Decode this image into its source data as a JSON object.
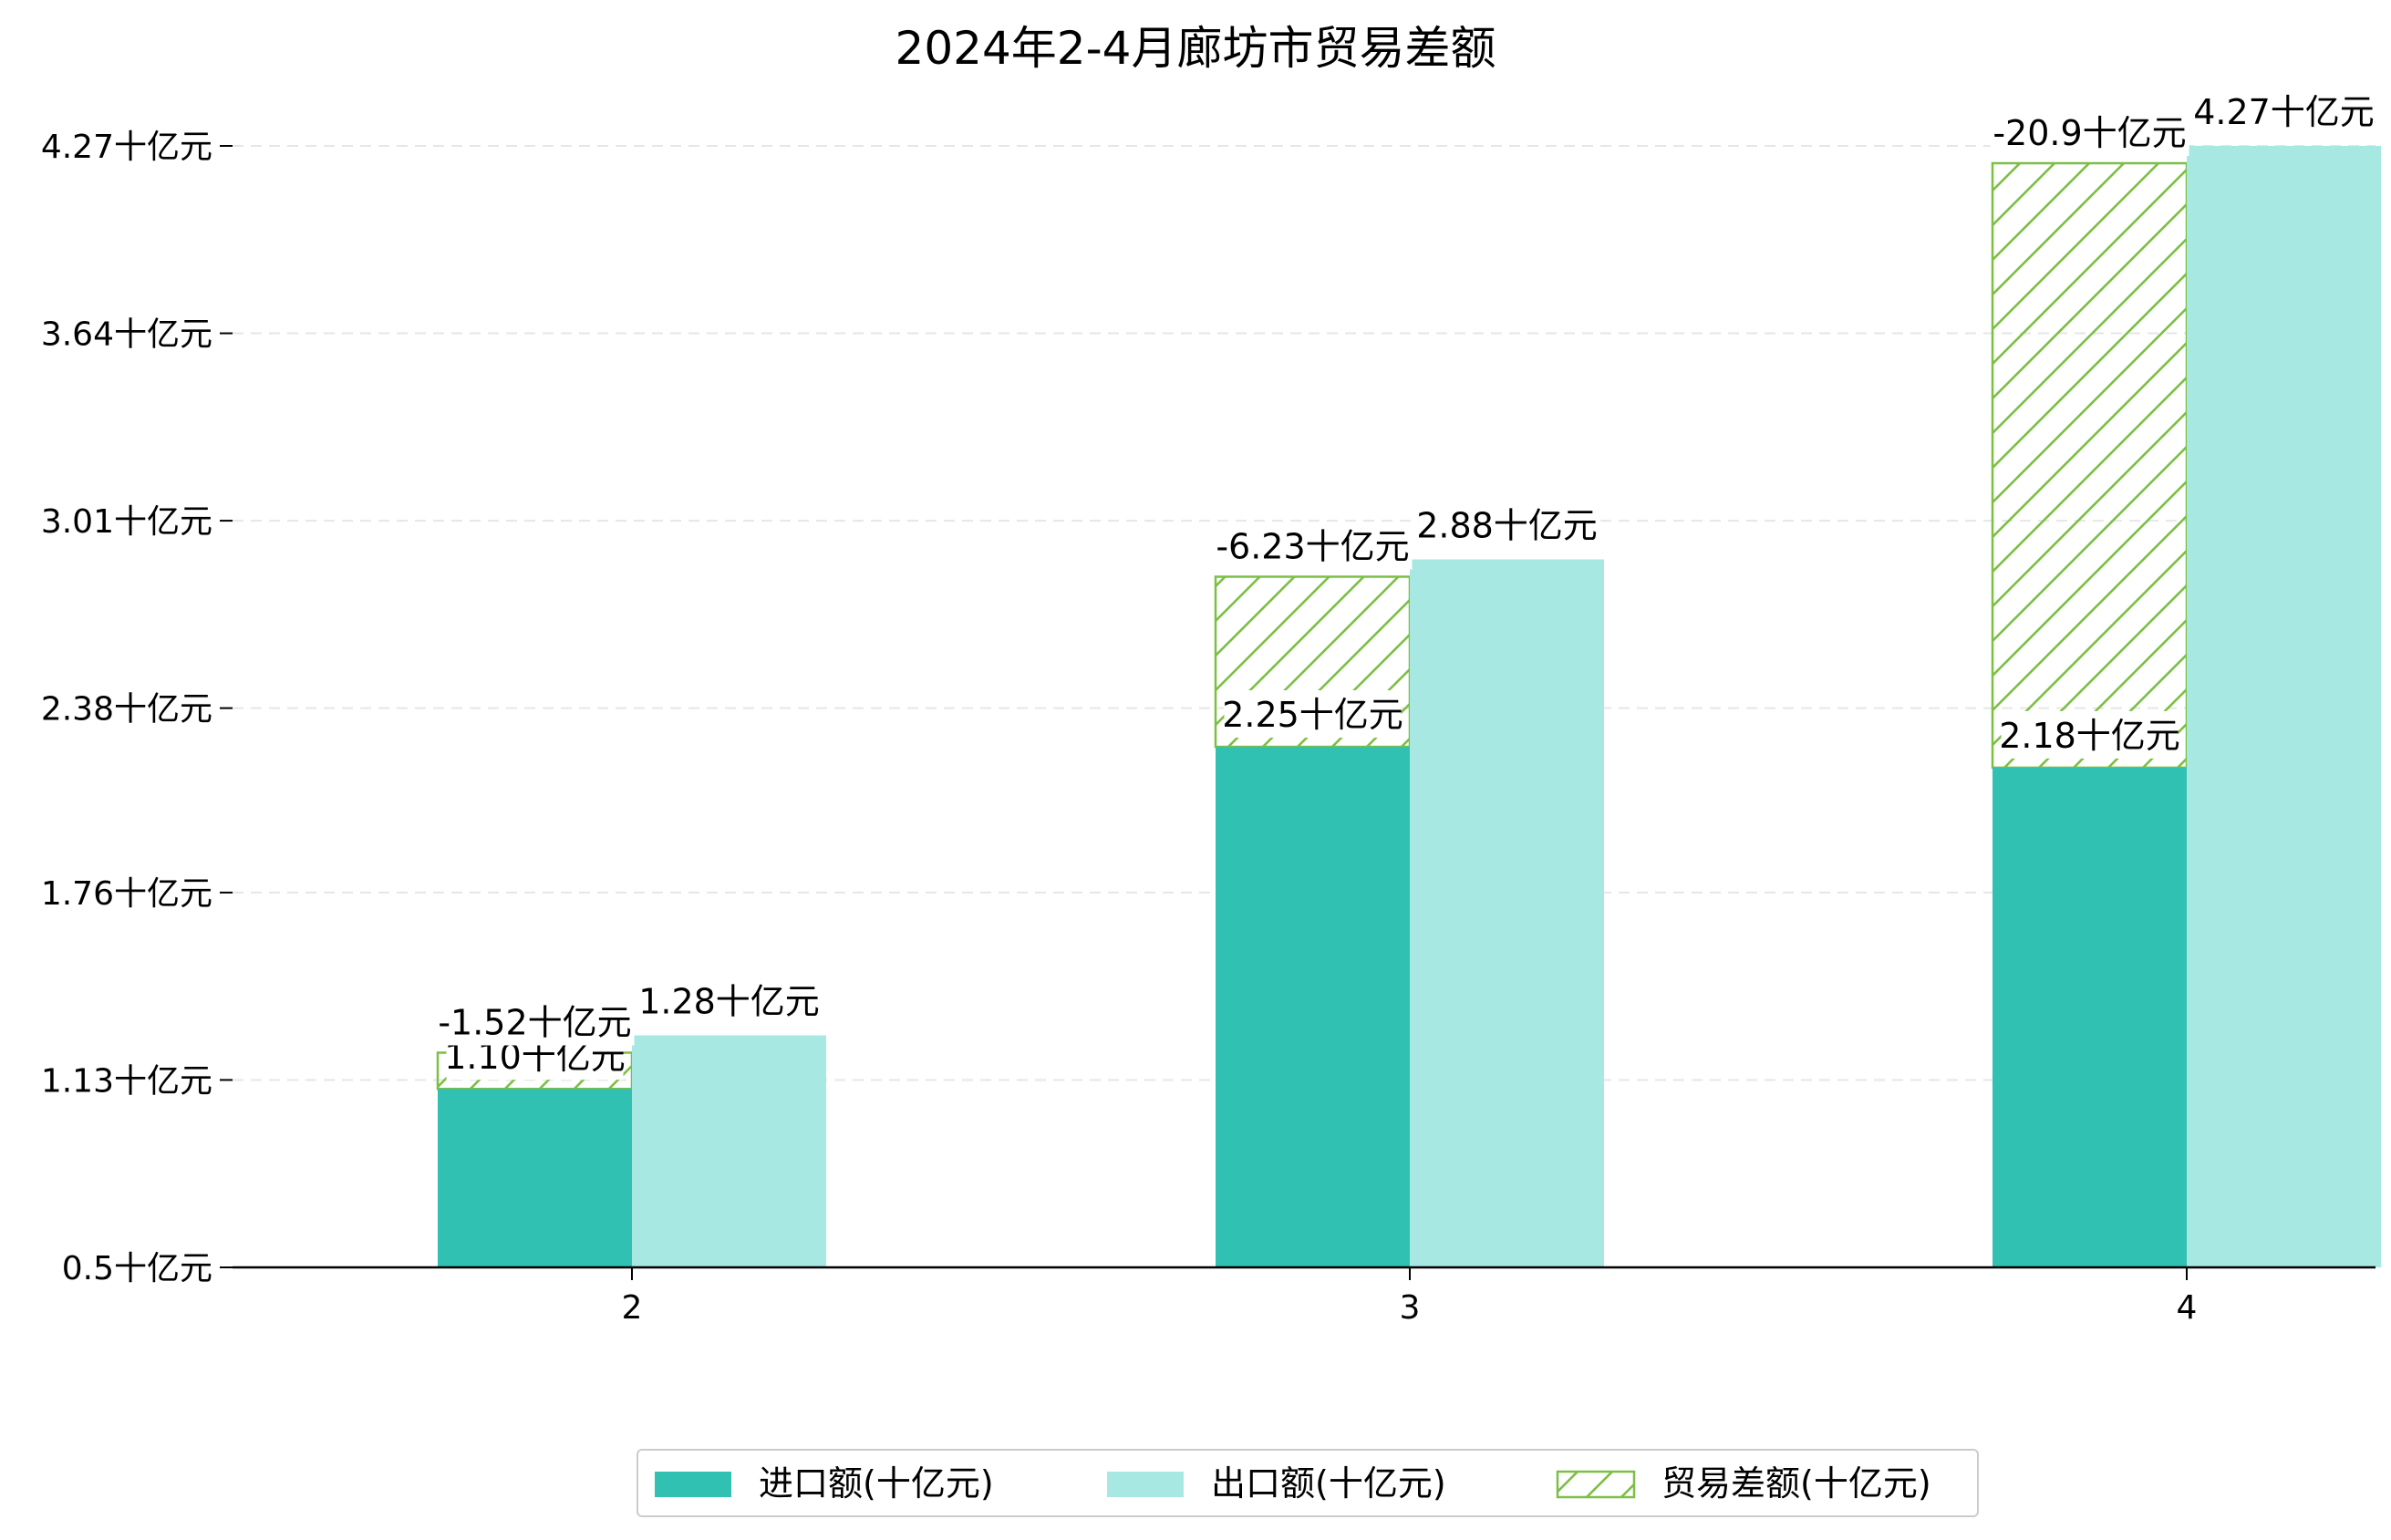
{
  "chart_data": {
    "type": "bar",
    "title": "2024年2-4月廊坊市贸易差额",
    "unit_suffix": "十亿元",
    "categories": [
      "2",
      "3",
      "4"
    ],
    "series": [
      {
        "name": "进口额(十亿元)",
        "values": [
          1.1,
          2.25,
          2.18
        ],
        "color": "#31c1b3"
      },
      {
        "name": "出口额(十亿元)",
        "values": [
          1.28,
          2.88,
          4.27
        ],
        "color": "#a8e8e2"
      },
      {
        "name": "贸易差额(十亿元)",
        "values": [
          -1.52,
          -6.23,
          -20.9
        ],
        "color": "#7cbf45",
        "hatch": true
      }
    ],
    "import_labels": [
      "1.10十亿元",
      "2.25十亿元",
      "2.18十亿元"
    ],
    "export_labels": [
      "1.28十亿元",
      "2.88十亿元",
      "4.27十亿元"
    ],
    "balance_labels": [
      "-1.52十亿元",
      "-6.23十亿元",
      "-20.9十亿元"
    ],
    "y_ticks": [
      "0.5十亿元",
      "1.13十亿元",
      "1.76十亿元",
      "2.38十亿元",
      "3.01十亿元",
      "3.64十亿元",
      "4.27十亿元"
    ],
    "y_tick_values": [
      0.5,
      1.13,
      1.76,
      2.38,
      3.01,
      3.64,
      4.27
    ],
    "ylim": [
      0.5,
      4.27
    ],
    "grid": true,
    "legend_position": "bottom-center",
    "legend": [
      "进口额(十亿元)",
      "出口额(十亿元)",
      "贸易差额(十亿元)"
    ]
  }
}
